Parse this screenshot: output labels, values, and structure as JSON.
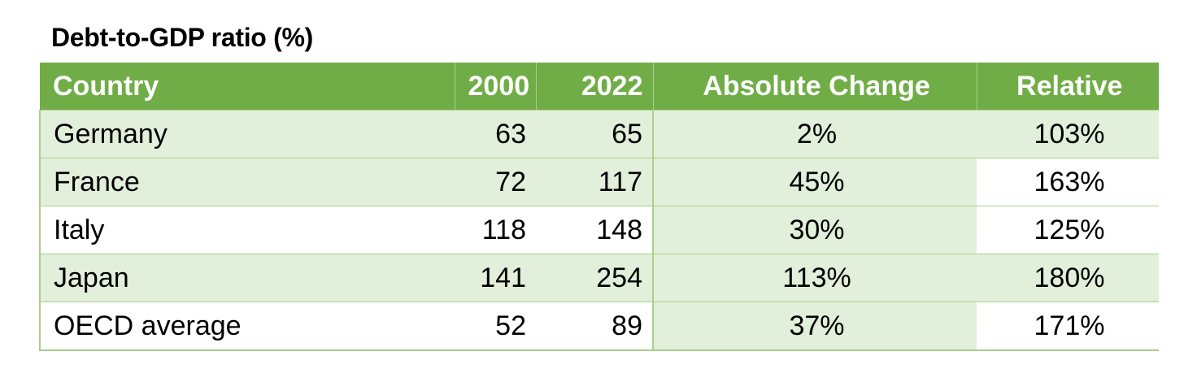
{
  "chart_data": {
    "type": "table",
    "title": "Debt-to-GDP ratio (%)",
    "columns": [
      "Country",
      "2000",
      "2022",
      "Absolute Change",
      "Relative"
    ],
    "rows": [
      {
        "country": "Germany",
        "y2000": "63",
        "y2022": "65",
        "absolute_change": "2%",
        "relative": "103%"
      },
      {
        "country": "France",
        "y2000": "72",
        "y2022": "117",
        "absolute_change": "45%",
        "relative": "163%"
      },
      {
        "country": "Italy",
        "y2000": "118",
        "y2022": "148",
        "absolute_change": "30%",
        "relative": "125%"
      },
      {
        "country": "Japan",
        "y2000": "141",
        "y2022": "254",
        "absolute_change": "113%",
        "relative": "180%"
      },
      {
        "country": "OECD average",
        "y2000": "52",
        "y2022": "89",
        "absolute_change": "37%",
        "relative": "171%"
      }
    ],
    "colors": {
      "header_background": "#70ad47",
      "header_text": "#ffffff",
      "band_background": "#e2efda",
      "border": "#a9d08e"
    }
  }
}
